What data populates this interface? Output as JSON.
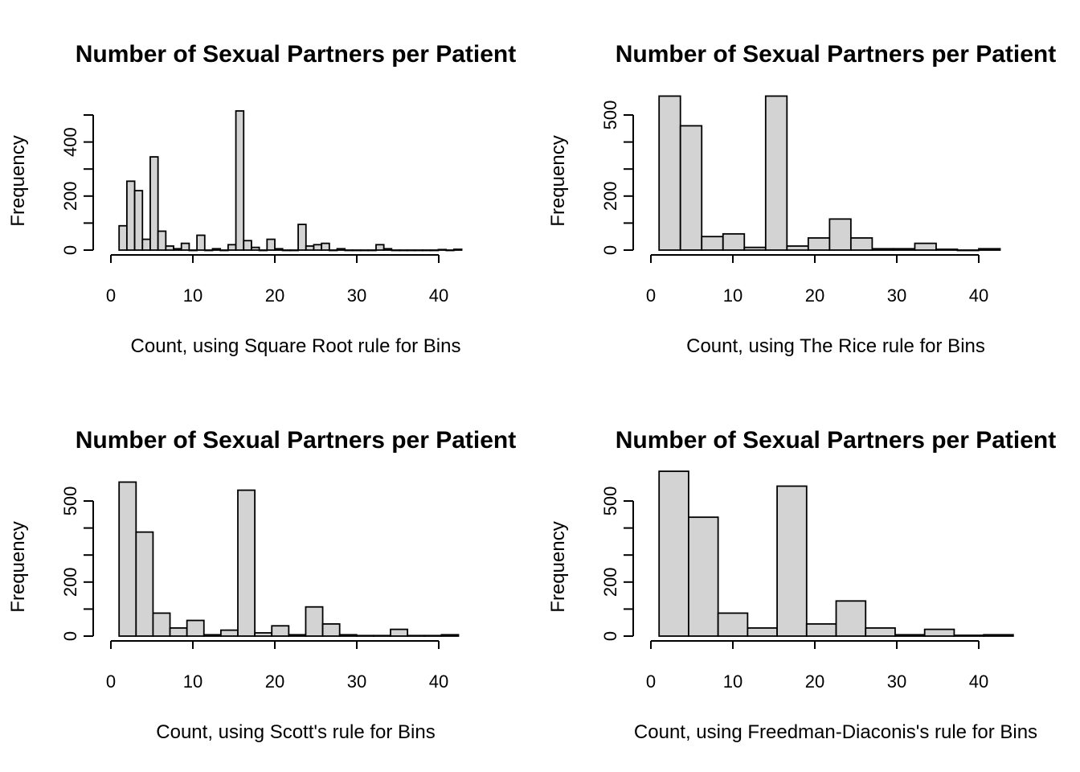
{
  "chart_data": [
    {
      "type": "bar",
      "title": "Number of Sexual Partners per Patient",
      "xlabel": "Count, using Square Root rule for Bins",
      "ylabel": "Frequency",
      "bin_start": 1,
      "bin_width": 0.95,
      "values": [
        90,
        255,
        220,
        40,
        345,
        70,
        15,
        5,
        25,
        0,
        55,
        0,
        5,
        0,
        20,
        515,
        35,
        10,
        0,
        40,
        5,
        0,
        0,
        95,
        15,
        20,
        25,
        0,
        5,
        0,
        0,
        0,
        0,
        20,
        5,
        0,
        0,
        0,
        0,
        0,
        0,
        2,
        0,
        3
      ],
      "xlim": [
        0,
        44
      ],
      "ylim": [
        0,
        500
      ],
      "xticks": [
        0,
        10,
        20,
        30,
        40
      ],
      "yticks": [
        0,
        200,
        400
      ],
      "ytick_marks": [
        0,
        100,
        200,
        300,
        400,
        500
      ]
    },
    {
      "type": "bar",
      "title": "Number of Sexual Partners per Patient",
      "xlabel": "Count, using The Rice rule for Bins",
      "ylabel": "Frequency",
      "bin_start": 1,
      "bin_width": 2.6,
      "values": [
        570,
        460,
        50,
        60,
        10,
        570,
        15,
        45,
        115,
        45,
        5,
        5,
        25,
        3,
        0,
        5
      ],
      "xlim": [
        0,
        44
      ],
      "ylim": [
        0,
        500
      ],
      "xticks": [
        0,
        10,
        20,
        30,
        40
      ],
      "yticks": [
        0,
        200,
        500
      ],
      "ytick_marks": [
        0,
        100,
        200,
        300,
        400,
        500
      ]
    },
    {
      "type": "bar",
      "title": "Number of Sexual Partners per Patient",
      "xlabel": "Count, using Scott's rule for Bins",
      "ylabel": "Frequency",
      "bin_start": 1,
      "bin_width": 2.07,
      "values": [
        570,
        385,
        85,
        30,
        58,
        5,
        22,
        540,
        12,
        38,
        5,
        108,
        45,
        5,
        2,
        2,
        25,
        2,
        2,
        5
      ],
      "xlim": [
        0,
        44
      ],
      "ylim": [
        0,
        500
      ],
      "xticks": [
        0,
        10,
        20,
        30,
        40
      ],
      "yticks": [
        0,
        200,
        500
      ],
      "ytick_marks": [
        0,
        100,
        200,
        300,
        400,
        500
      ]
    },
    {
      "type": "bar",
      "title": "Number of Sexual Partners per Patient",
      "xlabel": "Count, using Freedman-Diaconis's rule for Bins",
      "ylabel": "Frequency",
      "bin_start": 1,
      "bin_width": 3.6,
      "values": [
        610,
        440,
        85,
        30,
        555,
        45,
        130,
        30,
        5,
        25,
        3,
        5
      ],
      "xlim": [
        0,
        44
      ],
      "ylim": [
        0,
        500
      ],
      "xticks": [
        0,
        10,
        20,
        30,
        40
      ],
      "yticks": [
        0,
        200,
        500
      ],
      "ytick_marks": [
        0,
        100,
        200,
        300,
        400,
        500
      ]
    }
  ]
}
